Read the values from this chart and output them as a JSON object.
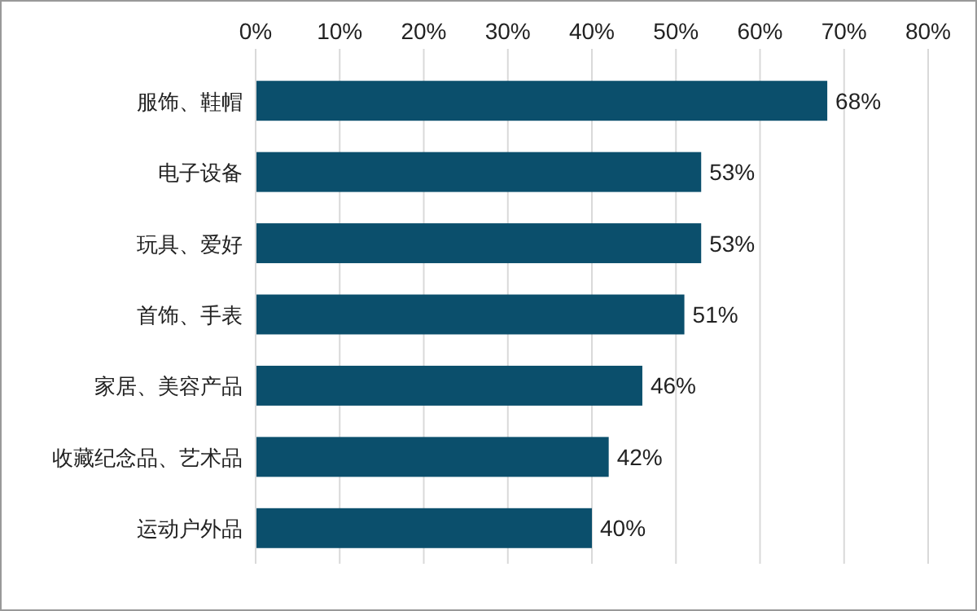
{
  "chart_data": {
    "type": "bar",
    "orientation": "horizontal",
    "categories": [
      "服饰、鞋帽",
      "电子设备",
      "玩具、爱好",
      "首饰、手表",
      "家居、美容产品",
      "收藏纪念品、艺术品",
      "运动户外品"
    ],
    "values": [
      68,
      53,
      53,
      51,
      46,
      42,
      40
    ],
    "color": "#0b4f6c",
    "xlim": [
      0,
      80
    ],
    "xticks": [
      {
        "value": 0,
        "label": "0%"
      },
      {
        "value": 10,
        "label": "10%"
      },
      {
        "value": 20,
        "label": "20%"
      },
      {
        "value": 30,
        "label": "30%"
      },
      {
        "value": 40,
        "label": "40%"
      },
      {
        "value": 50,
        "label": "50%"
      },
      {
        "value": 60,
        "label": "60%"
      },
      {
        "value": 70,
        "label": "70%"
      },
      {
        "value": 80,
        "label": "80%"
      }
    ],
    "grid": "x",
    "value_labels": [
      "68%",
      "53%",
      "53%",
      "51%",
      "46%",
      "42%",
      "40%"
    ]
  }
}
